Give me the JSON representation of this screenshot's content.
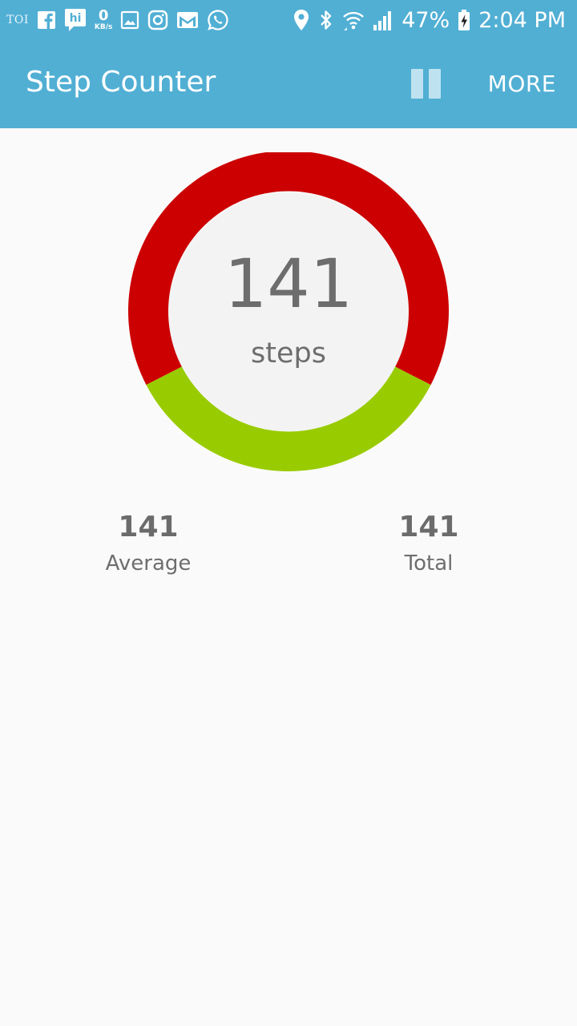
{
  "status_bar": {
    "left_icons": [
      "toi-icon",
      "facebook-icon",
      "hike-icon",
      "data-speed-icon",
      "gallery-icon",
      "instagram-icon",
      "gmail-icon",
      "whatsapp-icon"
    ],
    "toi_text": "TOI",
    "hike_text": "hi",
    "data_speed_value": "0",
    "data_speed_unit": "KB/s",
    "right_icons": [
      "location-icon",
      "bluetooth-icon",
      "wifi-icon",
      "signal-icon",
      "battery-charging-icon"
    ],
    "battery": "47%",
    "time": "2:04 PM"
  },
  "app_bar": {
    "title": "Step Counter",
    "pause_icon": "pause-icon",
    "more_label": "MORE",
    "color": "#51afd4"
  },
  "progress": {
    "steps_value": "141",
    "steps_label": "steps",
    "ring_red_color": "#cc0000",
    "ring_green_color": "#99cc00",
    "inner_color": "#f3f3f3"
  },
  "stats": {
    "average_value": "141",
    "average_label": "Average",
    "total_value": "141",
    "total_label": "Total"
  }
}
